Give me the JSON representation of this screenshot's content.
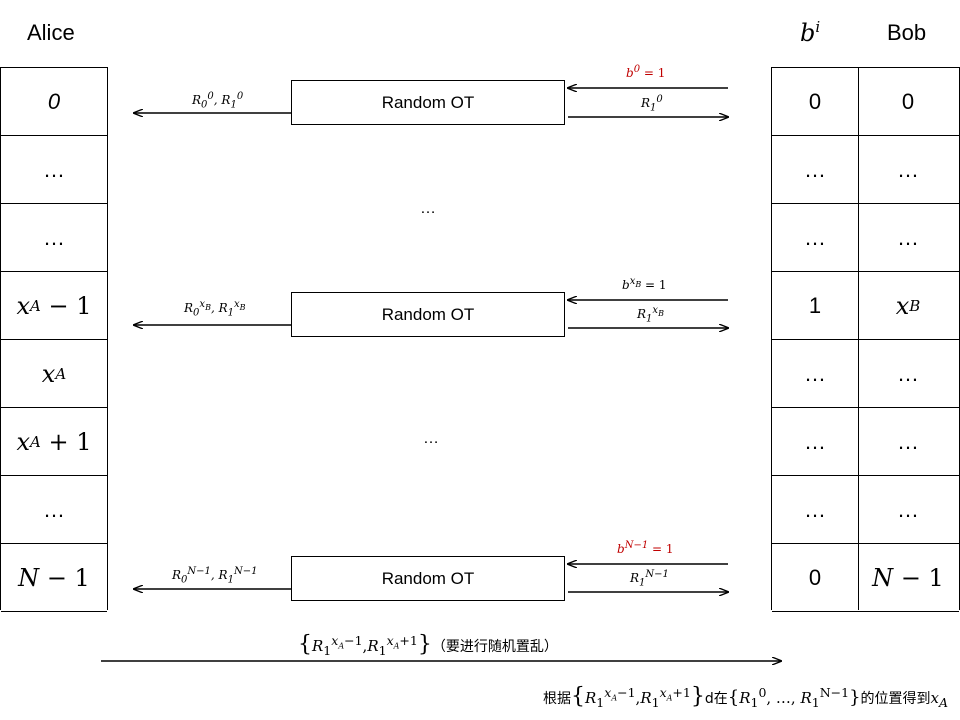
{
  "headers": {
    "alice": "Alice",
    "b_i": "b",
    "b_i_sup": "i",
    "bob": "Bob"
  },
  "alice_rows": [
    "0",
    "…",
    "…",
    "x_A − 1",
    "x_A",
    "x_A + 1",
    "…",
    "N − 1"
  ],
  "bi_rows": [
    "0",
    "…",
    "…",
    "1",
    "…",
    "…",
    "…",
    "0"
  ],
  "bob_rows": [
    "0",
    "…",
    "…",
    "x_B",
    "…",
    "…",
    "…",
    "N − 1"
  ],
  "ot_blocks": [
    {
      "label": "Random OT",
      "left_out": "R_0^0, R_1^0",
      "right_in": "b^0 = 1",
      "right_out": "R_1^0",
      "right_in_color": "#c00000"
    },
    {
      "label": "Random OT",
      "left_out": "R_0^{x_B}, R_1^{x_B}",
      "right_in": "b^{x_B} = 1",
      "right_out": "R_1^{x_B}",
      "right_in_color": "#000000"
    },
    {
      "label": "Random OT",
      "left_out": "R_0^{N−1}, R_1^{N−1}",
      "right_in": "b^{N−1} = 1",
      "right_out": "R_1^{N−1}",
      "right_in_color": "#c00000"
    }
  ],
  "middle_ellipses": [
    "…",
    "…"
  ],
  "bottom": {
    "message_set": "{R_1^{x_A−1}, R_1^{x_A+1}}",
    "message_note": "（要进行随机置乱）",
    "caption_prefix": "根据",
    "caption_set": "{R_1^{x_A−1}, R_1^{x_A+1}}",
    "caption_mid": "d在",
    "caption_range": "{R_1^0, …, R_1^{N−1}}",
    "caption_suffix": "的位置得到",
    "caption_target": "x_A"
  }
}
